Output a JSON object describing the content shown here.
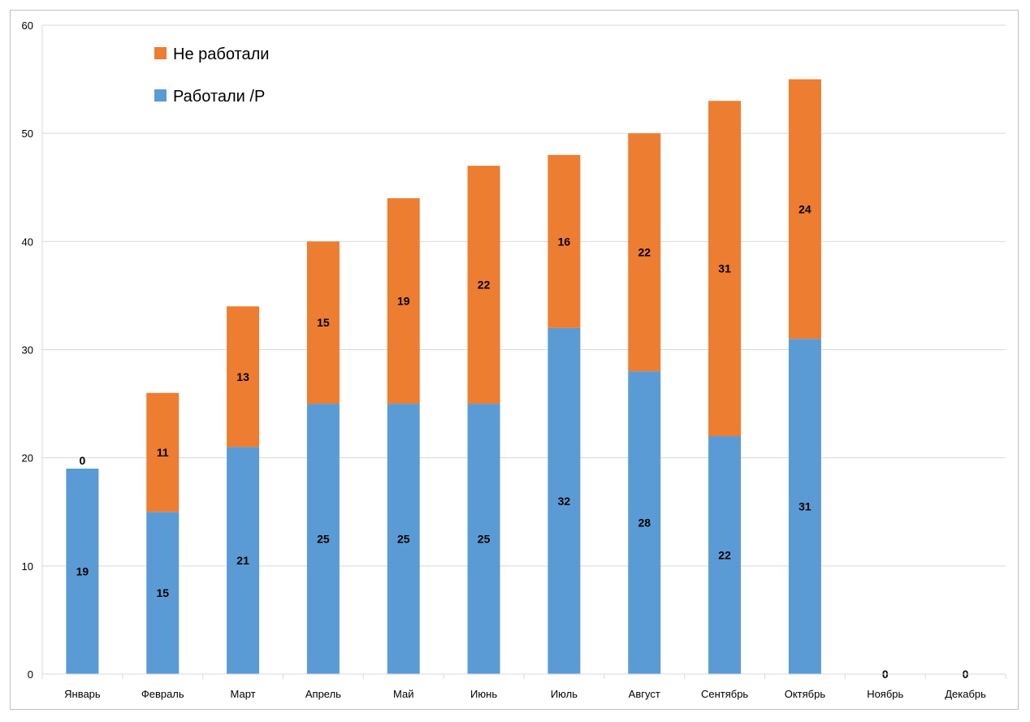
{
  "chart_data": {
    "type": "bar",
    "stacked": true,
    "categories": [
      "Январь",
      "Февраль",
      "Март",
      "Апрель",
      "Май",
      "Июнь",
      "Июль",
      "Август",
      "Сентябрь",
      "Октябрь",
      "Ноябрь",
      "Декабрь"
    ],
    "series": [
      {
        "name": "Работали /Р",
        "color": "#5b9bd5",
        "values": [
          19,
          15,
          21,
          25,
          25,
          25,
          32,
          28,
          22,
          31,
          0,
          0
        ]
      },
      {
        "name": "Не работали",
        "color": "#ed7d31",
        "values": [
          0,
          11,
          13,
          15,
          19,
          22,
          16,
          22,
          31,
          24,
          0,
          0
        ]
      }
    ],
    "ylim": [
      0,
      60
    ],
    "yticks": [
      0,
      10,
      20,
      30,
      40,
      50,
      60
    ],
    "grid": true,
    "legend_position": "top-left",
    "title": "",
    "xlabel": "",
    "ylabel": ""
  }
}
